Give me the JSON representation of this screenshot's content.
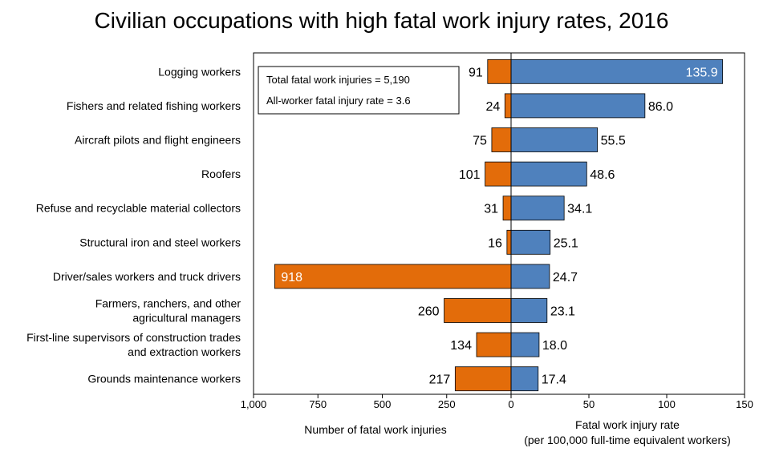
{
  "chart_data": {
    "type": "bar",
    "title": "Civilian occupations with high fatal work injury rates, 2016",
    "categories": [
      [
        "Logging workers"
      ],
      [
        "Fishers and related fishing workers"
      ],
      [
        "Aircraft pilots and flight engineers"
      ],
      [
        "Roofers"
      ],
      [
        "Refuse and recyclable material collectors"
      ],
      [
        "Structural iron and steel workers"
      ],
      [
        "Driver/sales workers and truck drivers"
      ],
      [
        "Farmers, ranchers, and other",
        "agricultural managers"
      ],
      [
        "First-line supervisors of construction trades",
        "and extraction workers"
      ],
      [
        "Grounds maintenance workers"
      ]
    ],
    "series": [
      {
        "name": "Number of fatal work injuries",
        "color": "#E36C0A",
        "values": [
          91,
          24,
          75,
          101,
          31,
          16,
          918,
          260,
          134,
          217
        ],
        "labels": [
          "91",
          "24",
          "75",
          "101",
          "31",
          "16",
          "918",
          "260",
          "134",
          "217"
        ],
        "xlim": [
          1000,
          0
        ],
        "ticks": [
          "1,000",
          "750",
          "500",
          "250",
          "0"
        ]
      },
      {
        "name": "Fatal work injury rate",
        "color": "#4F81BD",
        "values": [
          135.9,
          86.0,
          55.5,
          48.6,
          34.1,
          25.1,
          24.7,
          23.1,
          18.0,
          17.4
        ],
        "labels": [
          "135.9",
          "86.0",
          "55.5",
          "48.6",
          "34.1",
          "25.1",
          "24.7",
          "23.1",
          "18.0",
          "17.4"
        ],
        "xlim": [
          0,
          150
        ],
        "ticks": [
          "50",
          "100",
          "150"
        ]
      }
    ],
    "left_axis_title": "Number of fatal work injuries",
    "right_axis_title": [
      "Fatal work injury rate",
      "(per 100,000 full-time equivalent workers)"
    ],
    "annotation": {
      "total_injuries": "Total fatal work injuries = 5,190",
      "all_worker_rate": "All-worker fatal injury rate = 3.6"
    }
  }
}
